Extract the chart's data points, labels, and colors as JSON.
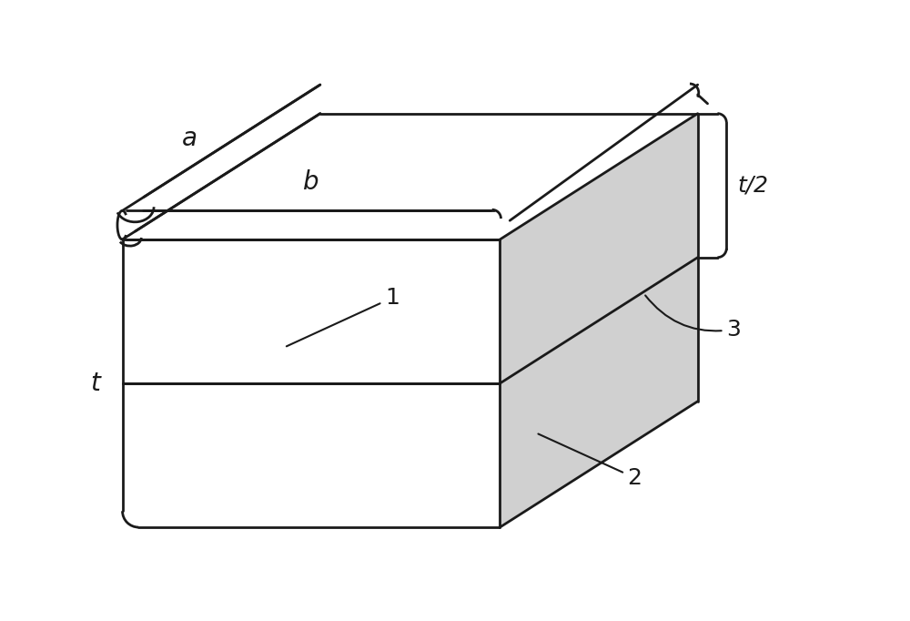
{
  "bg_color": "#ffffff",
  "line_color": "#1a1a1a",
  "fill_color_right": "#d0d0d0",
  "fill_color_top": "#ffffff",
  "fill_color_front": "#ffffff",
  "label_a": "a",
  "label_b": "b",
  "label_t": "t",
  "label_t2": "t/2",
  "label_1": "1",
  "label_2": "2",
  "label_3": "3",
  "fontsize_labels": 20,
  "fontsize_numbers": 18
}
